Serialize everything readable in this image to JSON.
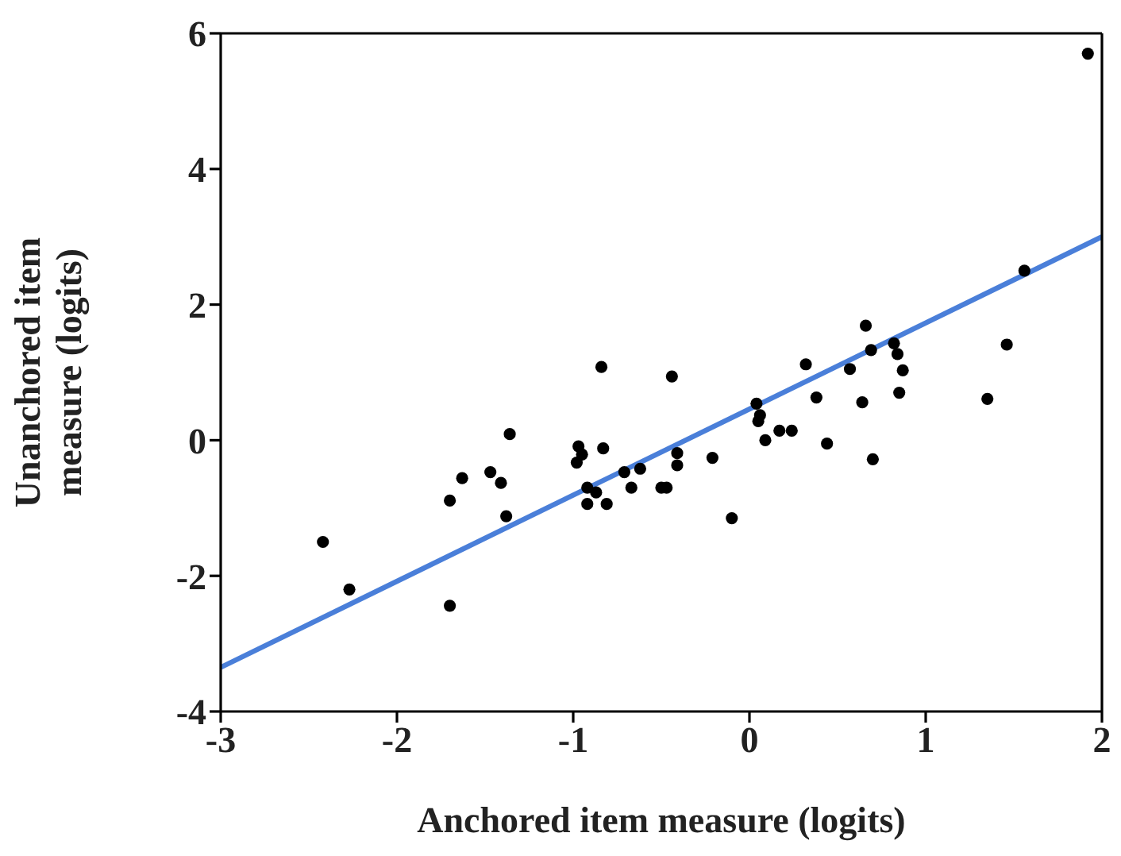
{
  "chart_data": {
    "type": "scatter",
    "xlabel": "Anchored item measure (logits)",
    "ylabel": "Unanchored item\nmeasure (logits)",
    "xlim": [
      -3,
      2
    ],
    "ylim": [
      -4,
      6
    ],
    "xticks": [
      -3,
      -2,
      -1,
      0,
      1,
      2
    ],
    "yticks": [
      -4,
      -2,
      0,
      2,
      4,
      6
    ],
    "grid": false,
    "legend": false,
    "marker": "circle",
    "series": [
      {
        "color": "#000000",
        "x": [
          1.92,
          1.56,
          0.66,
          0.69,
          0.82,
          0.84,
          0.87,
          0.85,
          1.46,
          1.35,
          0.32,
          0.57,
          0.38,
          0.64,
          0.7,
          0.44,
          0.04,
          0.06,
          0.05,
          0.09,
          0.17,
          0.24,
          -0.21,
          -0.1,
          -0.44,
          -0.41,
          -0.41,
          -0.47,
          -0.84,
          -1.36,
          -0.97,
          -0.95,
          -0.98,
          -0.83,
          -1.63,
          -1.47,
          -1.41,
          -1.7,
          -1.38,
          -2.42,
          -2.27,
          -1.7,
          -0.92,
          -0.87,
          -0.92,
          -0.81,
          -0.71,
          -0.62,
          -0.67,
          -0.5
        ],
        "values": [
          5.7,
          2.5,
          1.69,
          1.33,
          1.43,
          1.27,
          1.03,
          0.7,
          1.41,
          0.61,
          1.12,
          1.05,
          0.63,
          0.56,
          -0.28,
          -0.05,
          0.54,
          0.37,
          0.28,
          0.0,
          0.14,
          0.14,
          -0.26,
          -1.15,
          0.94,
          -0.19,
          -0.37,
          -0.7,
          1.08,
          0.09,
          -0.09,
          -0.21,
          -0.33,
          -0.12,
          -0.56,
          -0.47,
          -0.63,
          -0.89,
          -1.12,
          -1.5,
          -2.2,
          -2.44,
          -0.7,
          -0.77,
          -0.94,
          -0.94,
          -0.47,
          -0.42,
          -0.7,
          -0.7
        ]
      },
      {
        "type": "line",
        "color": "#4a7fd9",
        "x": [
          -3,
          2
        ],
        "values": [
          -3.35,
          3.0
        ],
        "line_style": "solid",
        "marker": "none"
      }
    ]
  }
}
